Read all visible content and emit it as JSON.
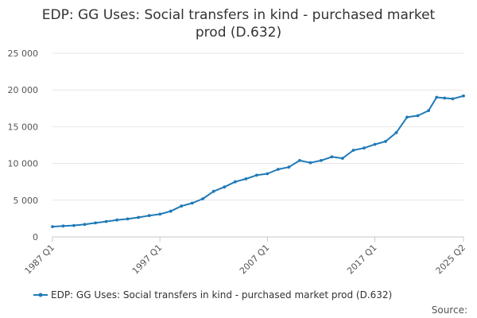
{
  "chart_data": {
    "type": "line",
    "title_line1": "EDP: GG Uses: Social transfers in kind - purchased market",
    "title_line2": "prod (D.632)",
    "ylim": [
      0,
      25000
    ],
    "y_ticks": [
      "0",
      "5 000",
      "10 000",
      "15 000",
      "20 000",
      "25 000"
    ],
    "y_tick_values": [
      0,
      5000,
      10000,
      15000,
      20000,
      25000
    ],
    "x_ticks": [
      "1987 Q1",
      "1997 Q1",
      "2007 Q1",
      "2017 Q1",
      "2025 Q2"
    ],
    "x_tick_values": [
      1987.0,
      1997.0,
      2007.0,
      2017.0,
      2025.25
    ],
    "xlim": [
      1987.0,
      2025.25
    ],
    "grid": true,
    "legend_position": "bottom",
    "series": [
      {
        "name": "EDP: GG Uses: Social transfers in kind - purchased market prod (D.632)",
        "color": "#1f7ab8",
        "points": [
          [
            1987.0,
            1400
          ],
          [
            1988.0,
            1480
          ],
          [
            1989.0,
            1560
          ],
          [
            1990.0,
            1700
          ],
          [
            1991.0,
            1900
          ],
          [
            1992.0,
            2100
          ],
          [
            1993.0,
            2300
          ],
          [
            1994.0,
            2450
          ],
          [
            1995.0,
            2650
          ],
          [
            1996.0,
            2900
          ],
          [
            1997.0,
            3100
          ],
          [
            1998.0,
            3500
          ],
          [
            1999.0,
            4200
          ],
          [
            2000.0,
            4600
          ],
          [
            2001.0,
            5200
          ],
          [
            2002.0,
            6200
          ],
          [
            2003.0,
            6800
          ],
          [
            2004.0,
            7500
          ],
          [
            2005.0,
            7900
          ],
          [
            2006.0,
            8400
          ],
          [
            2007.0,
            8600
          ],
          [
            2008.0,
            9200
          ],
          [
            2009.0,
            9500
          ],
          [
            2010.0,
            10400
          ],
          [
            2011.0,
            10100
          ],
          [
            2012.0,
            10400
          ],
          [
            2013.0,
            10900
          ],
          [
            2014.0,
            10700
          ],
          [
            2015.0,
            11800
          ],
          [
            2016.0,
            12100
          ],
          [
            2017.0,
            12600
          ],
          [
            2018.0,
            13000
          ],
          [
            2019.0,
            14200
          ],
          [
            2020.0,
            16300
          ],
          [
            2021.0,
            16500
          ],
          [
            2022.0,
            17200
          ],
          [
            2022.75,
            19000
          ],
          [
            2023.5,
            18900
          ],
          [
            2024.25,
            18800
          ],
          [
            2025.25,
            19200
          ]
        ]
      }
    ]
  },
  "source_label": "Source:"
}
